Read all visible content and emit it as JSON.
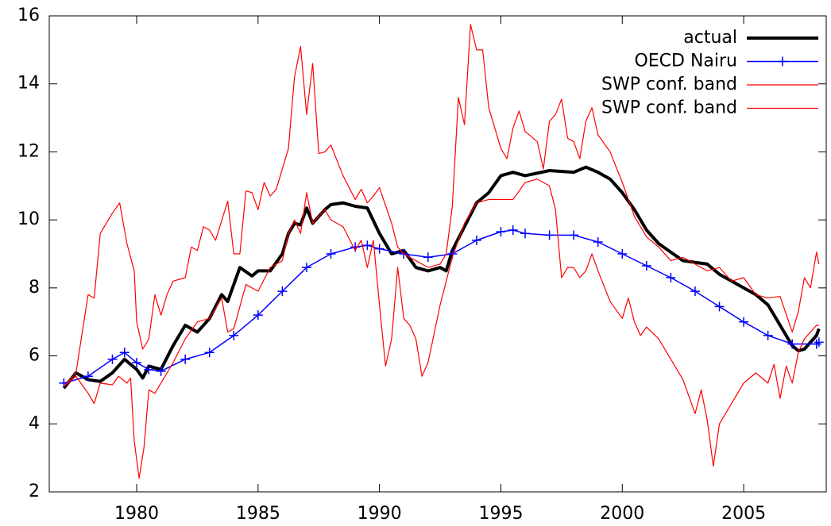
{
  "chart_data": {
    "type": "line",
    "xlim": [
      1976.4,
      2008.4
    ],
    "xticks": [
      1980,
      1985,
      1990,
      1995,
      2000,
      2005
    ],
    "ylim": [
      2,
      16
    ],
    "yticks": [
      2,
      4,
      6,
      8,
      10,
      12,
      14,
      16
    ],
    "legend": "top-right",
    "series": [
      {
        "name": "actual",
        "color": "#000000",
        "width": 4,
        "x": [
          1977,
          1977.5,
          1978,
          1978.5,
          1979,
          1979.5,
          1980,
          1980.25,
          1980.5,
          1981,
          1981.5,
          1982,
          1982.5,
          1983,
          1983.5,
          1983.75,
          1984.25,
          1984.75,
          1985,
          1985.5,
          1986,
          1986.25,
          1986.5,
          1986.75,
          1987,
          1987.25,
          1987.75,
          1988,
          1988.5,
          1989,
          1989.5,
          1990,
          1990.5,
          1991,
          1991.5,
          1992,
          1992.5,
          1992.75,
          1993,
          1993.5,
          1994,
          1994.5,
          1995,
          1995.5,
          1996,
          1997,
          1998,
          1998.5,
          1999,
          1999.5,
          2000,
          2000.5,
          2001,
          2001.5,
          2002,
          2002.5,
          2003,
          2003.5,
          2004,
          2004.5,
          2005,
          2005.5,
          2006,
          2006.5,
          2007,
          2007.25,
          2007.5,
          2008,
          2008.1
        ],
        "values": [
          5.05,
          5.5,
          5.3,
          5.25,
          5.5,
          5.9,
          5.6,
          5.35,
          5.7,
          5.6,
          6.3,
          6.9,
          6.7,
          7.1,
          7.8,
          7.6,
          8.6,
          8.35,
          8.5,
          8.5,
          9.0,
          9.6,
          9.9,
          9.85,
          10.35,
          9.9,
          10.3,
          10.45,
          10.5,
          10.4,
          10.35,
          9.6,
          9.0,
          9.1,
          8.6,
          8.5,
          8.6,
          8.5,
          9.1,
          9.8,
          10.5,
          10.8,
          11.3,
          11.4,
          11.3,
          11.45,
          11.4,
          11.55,
          11.4,
          11.2,
          10.8,
          10.3,
          9.7,
          9.3,
          9.05,
          8.8,
          8.75,
          8.7,
          8.4,
          8.2,
          8.0,
          7.8,
          7.5,
          6.9,
          6.3,
          6.15,
          6.2,
          6.6,
          6.8
        ]
      },
      {
        "name": "OECD Nairu",
        "color": "#0000ff",
        "width": 1.5,
        "marker": "plus",
        "x": [
          1977,
          1978,
          1979,
          1979.5,
          1980,
          1980.5,
          1981,
          1982,
          1983,
          1984,
          1985,
          1986,
          1987,
          1988,
          1989,
          1989.5,
          1990,
          1991,
          1992,
          1993,
          1994,
          1995,
          1995.5,
          1996,
          1997,
          1998,
          1999,
          2000,
          2001,
          2002,
          2003,
          2004,
          2005,
          2006,
          2007,
          2008,
          2008.1
        ],
        "values": [
          5.2,
          5.4,
          5.9,
          6.1,
          5.8,
          5.6,
          5.55,
          5.9,
          6.1,
          6.6,
          7.2,
          7.9,
          8.6,
          9.0,
          9.2,
          9.25,
          9.15,
          9.0,
          8.9,
          9.0,
          9.4,
          9.65,
          9.7,
          9.6,
          9.55,
          9.55,
          9.35,
          9.0,
          8.65,
          8.3,
          7.9,
          7.45,
          7.0,
          6.6,
          6.35,
          6.35,
          6.4
        ]
      },
      {
        "name": "SWP conf. band",
        "color": "#ff0000",
        "width": 1.2,
        "x": [
          1977,
          1977.5,
          1978,
          1978.25,
          1978.5,
          1979,
          1979.3,
          1979.6,
          1979.9,
          1980,
          1980.25,
          1980.5,
          1980.75,
          1981,
          1981.25,
          1981.5,
          1982,
          1982.25,
          1982.5,
          1982.75,
          1983,
          1983.25,
          1983.75,
          1984,
          1984.25,
          1984.5,
          1984.75,
          1985,
          1985.25,
          1985.5,
          1985.75,
          1986,
          1986.25,
          1986.5,
          1986.75,
          1987,
          1987.25,
          1987.5,
          1987.75,
          1988,
          1988.5,
          1989,
          1989.25,
          1989.5,
          1989.75,
          1990,
          1990.5,
          1990.75,
          1991,
          1991.5,
          1992,
          1992.5,
          1992.75,
          1993,
          1993.25,
          1993.5,
          1993.75,
          1994,
          1994.25,
          1994.5,
          1995,
          1995.25,
          1995.5,
          1995.75,
          1996,
          1996.5,
          1996.75,
          1997,
          1997.25,
          1997.5,
          1997.75,
          1998,
          1998.25,
          1998.5,
          1998.75,
          1999,
          1999.5,
          2000,
          2000.5,
          2001,
          2001.5,
          2002,
          2002.5,
          2003,
          2003.5,
          2004,
          2004.5,
          2005,
          2005.5,
          2006,
          2006.5,
          2007,
          2007.25,
          2007.5,
          2007.75,
          2008,
          2008.1
        ],
        "values": [
          5.1,
          5.5,
          7.8,
          7.7,
          9.6,
          10.2,
          10.5,
          9.3,
          8.5,
          7.0,
          6.2,
          6.5,
          7.8,
          7.2,
          7.8,
          8.2,
          8.3,
          9.2,
          9.1,
          9.8,
          9.7,
          9.4,
          10.55,
          9.0,
          9.0,
          10.85,
          10.8,
          10.3,
          11.1,
          10.7,
          10.9,
          11.5,
          12.1,
          14.2,
          15.1,
          13.1,
          14.6,
          11.95,
          12.0,
          12.2,
          11.3,
          10.6,
          10.9,
          10.5,
          10.7,
          10.95,
          9.9,
          9.2,
          9.0,
          8.8,
          8.6,
          8.7,
          9.0,
          10.4,
          13.6,
          12.8,
          15.75,
          15.0,
          15.0,
          13.3,
          12.1,
          11.8,
          12.7,
          13.2,
          12.6,
          12.3,
          11.5,
          12.9,
          13.1,
          13.55,
          12.4,
          12.3,
          11.8,
          12.9,
          13.3,
          12.5,
          12.0,
          11.1,
          10.1,
          9.5,
          9.2,
          8.8,
          8.9,
          8.7,
          8.5,
          8.6,
          8.2,
          8.3,
          7.8,
          7.7,
          7.75,
          6.7,
          7.3,
          8.3,
          8.0,
          9.05,
          8.7
        ]
      },
      {
        "name": "SWP conf. band",
        "color": "#ff0000",
        "width": 1.2,
        "x": [
          1977,
          1977.5,
          1978,
          1978.25,
          1978.5,
          1979,
          1979.25,
          1979.6,
          1979.75,
          1979.9,
          1980.1,
          1980.3,
          1980.5,
          1980.75,
          1981,
          1981.5,
          1982,
          1982.5,
          1983,
          1983.5,
          1983.75,
          1984,
          1984.5,
          1985,
          1985.5,
          1986,
          1986.25,
          1986.5,
          1986.75,
          1987,
          1987.25,
          1987.75,
          1988,
          1988.5,
          1989,
          1989.25,
          1989.5,
          1989.75,
          1990,
          1990.25,
          1990.5,
          1990.75,
          1991,
          1991.25,
          1991.5,
          1991.75,
          1992,
          1992.5,
          1993,
          1993.5,
          1994,
          1994.5,
          1995,
          1995.5,
          1996,
          1996.5,
          1997,
          1997.25,
          1997.5,
          1997.75,
          1998,
          1998.25,
          1998.5,
          1998.75,
          1999,
          1999.5,
          2000,
          2000.25,
          2000.5,
          2000.75,
          2001,
          2001.5,
          2002,
          2002.5,
          2003,
          2003.25,
          2003.5,
          2003.75,
          2004,
          2004.5,
          2005,
          2005.5,
          2006,
          2006.25,
          2006.5,
          2006.75,
          2007,
          2007.25,
          2007.5,
          2008,
          2008.1
        ],
        "values": [
          5.1,
          5.4,
          4.9,
          4.6,
          5.2,
          5.15,
          5.4,
          5.2,
          5.35,
          3.5,
          2.4,
          3.3,
          5.0,
          4.9,
          5.2,
          5.8,
          6.5,
          7.0,
          7.1,
          7.7,
          6.7,
          6.8,
          8.1,
          7.9,
          8.6,
          8.8,
          9.6,
          10.0,
          9.6,
          10.8,
          9.9,
          10.3,
          10.0,
          9.8,
          9.1,
          9.4,
          8.6,
          9.4,
          7.5,
          5.7,
          6.5,
          8.6,
          7.1,
          6.9,
          6.5,
          5.4,
          5.8,
          7.5,
          8.9,
          9.9,
          10.5,
          10.6,
          10.6,
          10.6,
          11.1,
          11.2,
          11.0,
          10.3,
          8.3,
          8.6,
          8.6,
          8.3,
          8.5,
          9.0,
          8.5,
          7.6,
          7.1,
          7.7,
          7.0,
          6.6,
          6.85,
          6.5,
          5.9,
          5.3,
          4.3,
          5.0,
          4.1,
          2.75,
          4.0,
          4.6,
          5.2,
          5.5,
          5.2,
          5.75,
          4.75,
          5.7,
          5.2,
          6.1,
          6.5,
          6.9,
          6.9
        ]
      }
    ]
  }
}
